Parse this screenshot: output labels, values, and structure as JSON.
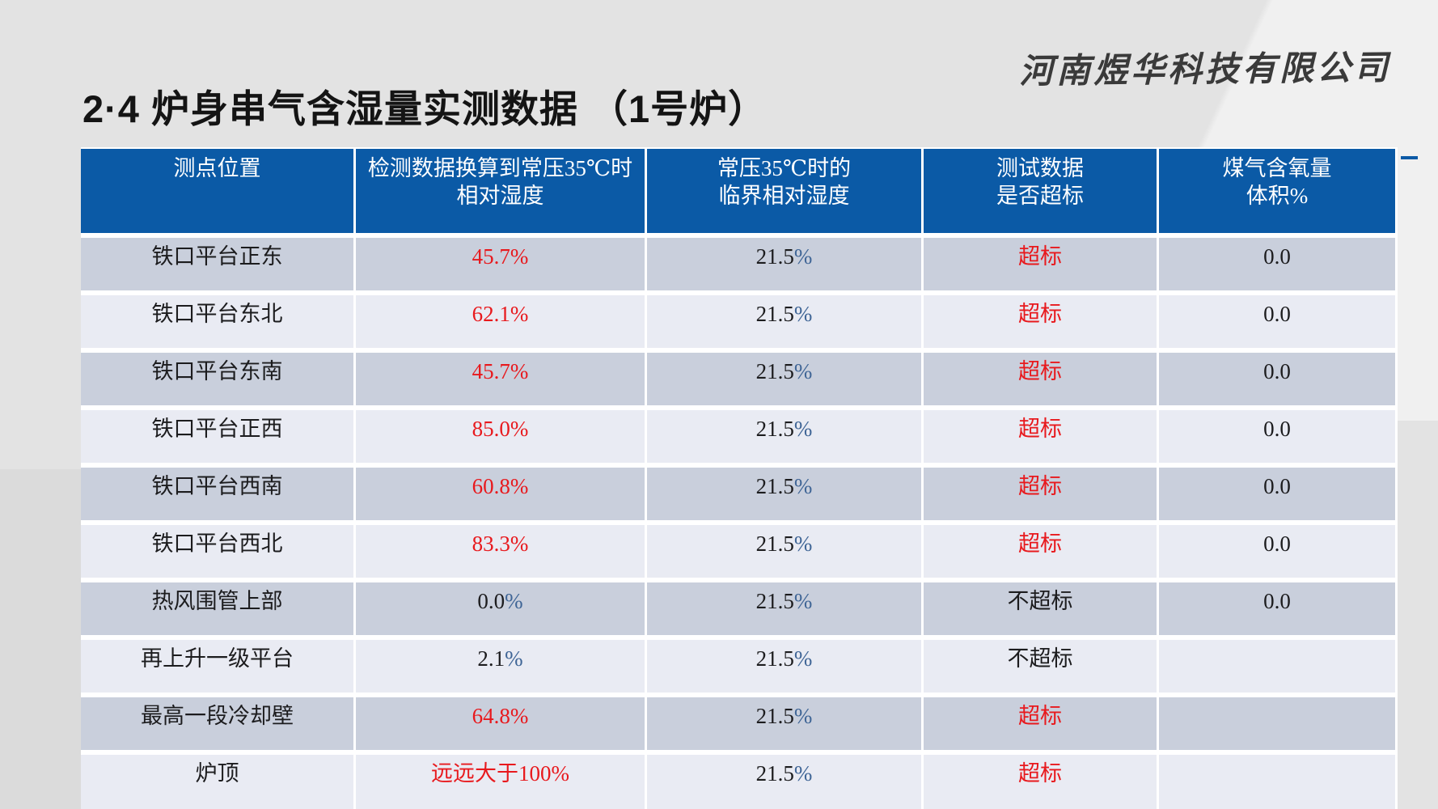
{
  "page": {
    "background": "#e3e3e3"
  },
  "logo": {
    "text": "河南煜华科技有限公司"
  },
  "title": {
    "text": "2·4  炉身串气含湿量实测数据 （1号炉）"
  },
  "colors": {
    "header_bg": "#0b5aa6",
    "row_dark": "#c9cfdc",
    "row_light": "#e9ebf3",
    "red": "#e8191d",
    "percent_blue": "#3f6596",
    "text_dark": "#1c1c1e",
    "header_text": "#ffffff",
    "accent_dash": "#0b5aa6"
  },
  "table": {
    "columns": [
      {
        "lines": [
          "测点位置"
        ]
      },
      {
        "lines": [
          "检测数据换算到常压35℃时",
          "相对湿度"
        ]
      },
      {
        "lines": [
          "常压35℃时的",
          "临界相对湿度"
        ]
      },
      {
        "lines": [
          "测试数据",
          "是否超标"
        ]
      },
      {
        "lines": [
          "煤气含氧量",
          "体积%"
        ]
      }
    ],
    "rows": [
      {
        "location": "铁口平台正东",
        "humidity": "45.7%",
        "humidity_red": true,
        "critical": "21.5%",
        "status": "超标",
        "status_red": true,
        "oxygen": "0.0"
      },
      {
        "location": "铁口平台东北",
        "humidity": "62.1%",
        "humidity_red": true,
        "critical": "21.5%",
        "status": "超标",
        "status_red": true,
        "oxygen": "0.0"
      },
      {
        "location": "铁口平台东南",
        "humidity": "45.7%",
        "humidity_red": true,
        "critical": "21.5%",
        "status": "超标",
        "status_red": true,
        "oxygen": "0.0"
      },
      {
        "location": "铁口平台正西",
        "humidity": "85.0%",
        "humidity_red": true,
        "critical": "21.5%",
        "status": "超标",
        "status_red": true,
        "oxygen": "0.0"
      },
      {
        "location": "铁口平台西南",
        "humidity": "60.8%",
        "humidity_red": true,
        "critical": "21.5%",
        "status": "超标",
        "status_red": true,
        "oxygen": "0.0"
      },
      {
        "location": "铁口平台西北",
        "humidity": "83.3%",
        "humidity_red": true,
        "critical": "21.5%",
        "status": "超标",
        "status_red": true,
        "oxygen": "0.0"
      },
      {
        "location": "热风围管上部",
        "humidity": "0.0%",
        "humidity_red": false,
        "critical": "21.5%",
        "status": "不超标",
        "status_red": false,
        "oxygen": "0.0"
      },
      {
        "location": "再上升一级平台",
        "humidity": "2.1%",
        "humidity_red": false,
        "critical": "21.5%",
        "status": "不超标",
        "status_red": false,
        "oxygen": ""
      },
      {
        "location": "最高一段冷却壁",
        "humidity": "64.8%",
        "humidity_red": true,
        "critical": "21.5%",
        "status": "超标",
        "status_red": true,
        "oxygen": ""
      },
      {
        "location": "炉顶",
        "humidity": "远远大于100%",
        "humidity_red": true,
        "critical": "21.5%",
        "status": "超标",
        "status_red": true,
        "oxygen": ""
      }
    ]
  }
}
